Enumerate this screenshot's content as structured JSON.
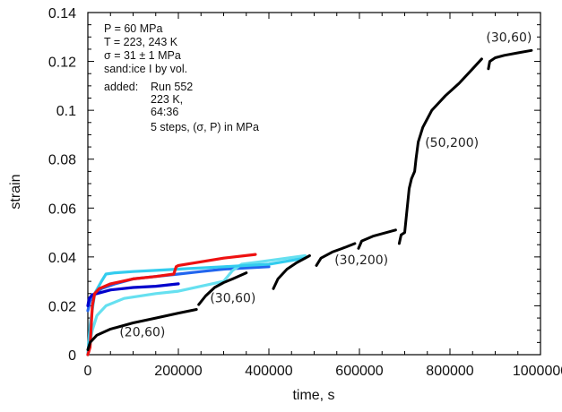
{
  "chart_data": {
    "type": "line",
    "title": "",
    "xlabel": "time, s",
    "ylabel": "strain",
    "xlim": [
      0,
      1000000
    ],
    "ylim": [
      0,
      0.14
    ],
    "grid": false,
    "x_ticks": [
      0,
      200000,
      400000,
      600000,
      800000,
      1000000
    ],
    "x_tick_labels": [
      "0",
      "200000",
      "400000",
      "600000",
      "800000",
      "1000000"
    ],
    "y_ticks": [
      0,
      0.02,
      0.04,
      0.06,
      0.08,
      0.1,
      0.12,
      0.14
    ],
    "y_tick_labels": [
      "0",
      "0.02",
      "0.04",
      "0.06",
      "0.08",
      "0.1",
      "0.12",
      "0.14"
    ],
    "annotation_lines": [
      "P = 60 MPa",
      "T = 223, 243 K",
      "σ = 31 ± 1 MPa",
      "sand:ice I by vol.",
      "added:",
      "Run 552",
      "223 K,",
      "64:36",
      "5 steps, (σ, P) in MPa"
    ],
    "segment_labels": [
      {
        "text": "(20,60)",
        "x": 70000,
        "y": 0.0075
      },
      {
        "text": "(30,60)",
        "x": 270000,
        "y": 0.0215
      },
      {
        "text": "(30,200)",
        "x": 545000,
        "y": 0.037
      },
      {
        "text": "(50,200)",
        "x": 745000,
        "y": 0.085
      },
      {
        "text": "(30,60)",
        "x": 880000,
        "y": 0.128
      }
    ],
    "series": [
      {
        "name": "Run 552 (black)",
        "color": "#000000",
        "segments": [
          {
            "x": [
              0,
              5000,
              20000,
              50000,
              100000,
              150000,
              200000,
              240000
            ],
            "y": [
              0.002,
              0.005,
              0.008,
              0.0105,
              0.013,
              0.015,
              0.017,
              0.0185
            ]
          },
          {
            "x": [
              245000,
              260000,
              280000,
              300000,
              320000,
              350000
            ],
            "y": [
              0.0205,
              0.024,
              0.0275,
              0.0295,
              0.031,
              0.0335
            ]
          },
          {
            "x": [
              410000,
              420000,
              440000,
              460000,
              490000
            ],
            "y": [
              0.027,
              0.031,
              0.035,
              0.0375,
              0.0405
            ]
          },
          {
            "x": [
              505000,
              515000,
              540000,
              570000,
              590000
            ],
            "y": [
              0.0365,
              0.0395,
              0.042,
              0.044,
              0.0455
            ]
          },
          {
            "x": [
              598000,
              605000,
              630000,
              660000,
              680000
            ],
            "y": [
              0.0435,
              0.0465,
              0.0485,
              0.05,
              0.051
            ]
          },
          {
            "x": [
              688000,
              692000,
              700000,
              705000,
              710000,
              715000,
              722000,
              725000,
              730000,
              740000,
              760000,
              790000,
              820000,
              850000,
              870000
            ],
            "y": [
              0.0455,
              0.049,
              0.05,
              0.059,
              0.068,
              0.072,
              0.075,
              0.08,
              0.087,
              0.093,
              0.1,
              0.106,
              0.111,
              0.117,
              0.121
            ]
          },
          {
            "x": [
              885000,
              888000,
              900000,
              920000,
              950000,
              980000
            ],
            "y": [
              0.117,
              0.12,
              0.1215,
              0.1225,
              0.1235,
              0.1245
            ]
          }
        ]
      },
      {
        "name": "red",
        "color": "#ee1111",
        "segments": [
          {
            "x": [
              0,
              5000,
              10000,
              15000,
              25000,
              50000,
              100000,
              150000,
              190000,
              195000,
              200000,
              250000,
              300000,
              370000
            ],
            "y": [
              0.0,
              0.003,
              0.02,
              0.025,
              0.027,
              0.029,
              0.031,
              0.032,
              0.033,
              0.036,
              0.0365,
              0.038,
              0.0395,
              0.041
            ]
          }
        ]
      },
      {
        "name": "cyan",
        "color": "#33ccee",
        "segments": [
          {
            "x": [
              0,
              5000,
              15000,
              30000,
              40000,
              60000,
              100000,
              150000,
              200000,
              300000,
              400000,
              480000
            ],
            "y": [
              0.0,
              0.012,
              0.025,
              0.03,
              0.033,
              0.0335,
              0.034,
              0.0345,
              0.035,
              0.036,
              0.037,
              0.0395
            ]
          }
        ]
      },
      {
        "name": "light cyan",
        "color": "#66e0f0",
        "segments": [
          {
            "x": [
              0,
              10000,
              20000,
              40000,
              80000,
              150000,
              200000,
              250000,
              300000,
              320000,
              340000,
              380000,
              420000,
              480000
            ],
            "y": [
              0.0,
              0.01,
              0.016,
              0.02,
              0.023,
              0.025,
              0.026,
              0.028,
              0.03,
              0.0345,
              0.037,
              0.038,
              0.039,
              0.0405
            ]
          }
        ]
      },
      {
        "name": "medium blue",
        "color": "#2266ee",
        "segments": [
          {
            "x": [
              0,
              5000,
              15000,
              30000,
              60000,
              100000,
              150000,
              200000,
              250000,
              300000,
              350000,
              400000
            ],
            "y": [
              0.018,
              0.022,
              0.025,
              0.027,
              0.029,
              0.031,
              0.032,
              0.033,
              0.034,
              0.035,
              0.0355,
              0.036
            ]
          }
        ]
      },
      {
        "name": "dark blue",
        "color": "#0000cc",
        "segments": [
          {
            "x": [
              0,
              3000,
              10000,
              20000,
              50000,
              100000,
              150000,
              200000
            ],
            "y": [
              0.02,
              0.023,
              0.0245,
              0.025,
              0.0265,
              0.0275,
              0.028,
              0.029
            ]
          }
        ]
      }
    ]
  }
}
